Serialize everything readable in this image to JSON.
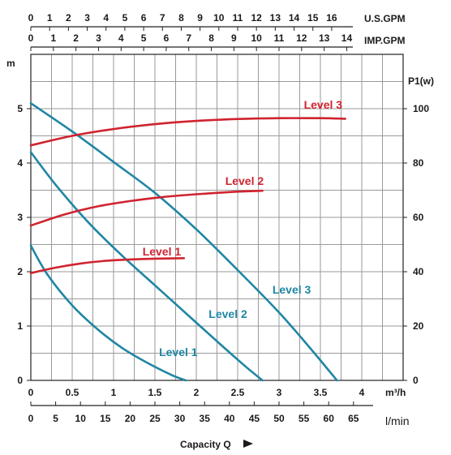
{
  "chart_data": {
    "type": "line",
    "title": "",
    "xlabel": "Capacity Q",
    "x_units": "m³/h",
    "xlim": [
      0,
      4.5
    ],
    "x_ticks": [
      0,
      0.5,
      1,
      1.5,
      2,
      2.5,
      3,
      3.5,
      4
    ],
    "y_left_label": "m",
    "y_left_lim": [
      0,
      6
    ],
    "y_left_ticks": [
      0,
      1,
      2,
      3,
      4,
      5
    ],
    "y_right_label": "P1(w)",
    "y_right_lim": [
      0,
      120
    ],
    "y_right_ticks": [
      0,
      20,
      40,
      60,
      80,
      100
    ],
    "grid": true,
    "top_axes": [
      {
        "label": "U.S.GPM",
        "range": [
          0,
          19.8
        ],
        "ticks": [
          0,
          1,
          2,
          3,
          4,
          5,
          6,
          7,
          8,
          9,
          10,
          11,
          12,
          13,
          14,
          15,
          16
        ]
      },
      {
        "label": "IMP.GPM",
        "range": [
          0,
          16.5
        ],
        "ticks": [
          0,
          1,
          2,
          3,
          4,
          5,
          6,
          7,
          8,
          9,
          10,
          11,
          12,
          13,
          14
        ]
      }
    ],
    "bottom_axis_2": {
      "label": "l/min",
      "range": [
        0,
        75
      ],
      "ticks": [
        0,
        5,
        10,
        15,
        20,
        25,
        30,
        35,
        40,
        45,
        50,
        55,
        60,
        65
      ]
    },
    "series": [
      {
        "name": "Level 1",
        "axis": "left",
        "color": "#1f86a3",
        "x": [
          0,
          0.2,
          0.5,
          0.8,
          1.1,
          1.4,
          1.7,
          1.87
        ],
        "y": [
          2.48,
          1.95,
          1.38,
          0.95,
          0.6,
          0.33,
          0.1,
          0
        ]
      },
      {
        "name": "Level 2",
        "axis": "left",
        "color": "#1f86a3",
        "x": [
          0,
          0.3,
          0.7,
          1.1,
          1.5,
          1.9,
          2.3,
          2.6,
          2.8
        ],
        "y": [
          4.2,
          3.6,
          2.9,
          2.3,
          1.75,
          1.2,
          0.65,
          0.25,
          0
        ]
      },
      {
        "name": "Level 3",
        "axis": "left",
        "color": "#1f86a3",
        "x": [
          0,
          0.5,
          1.0,
          1.5,
          2.0,
          2.5,
          3.0,
          3.4,
          3.7
        ],
        "y": [
          5.1,
          4.58,
          4.02,
          3.45,
          2.78,
          2.03,
          1.25,
          0.55,
          0
        ]
      },
      {
        "name": "Level 1",
        "axis": "right",
        "color": "#d0232f",
        "x": [
          0,
          0.3,
          0.6,
          0.9,
          1.2,
          1.5,
          1.85
        ],
        "y": [
          39.5,
          41.5,
          43,
          44,
          44.5,
          44.8,
          45
        ]
      },
      {
        "name": "Level 2",
        "axis": "right",
        "color": "#d0232f",
        "x": [
          0,
          0.4,
          0.8,
          1.2,
          1.6,
          2.0,
          2.4,
          2.8
        ],
        "y": [
          57,
          61,
          64,
          66,
          67.5,
          68.5,
          69.3,
          69.8
        ]
      },
      {
        "name": "Level 3",
        "axis": "right",
        "color": "#d0232f",
        "x": [
          0,
          0.5,
          1.0,
          1.5,
          2.0,
          2.5,
          3.0,
          3.5,
          3.8
        ],
        "y": [
          86.5,
          90,
          92.5,
          94.3,
          95.5,
          96.2,
          96.5,
          96.5,
          96.3
        ]
      }
    ],
    "annotations": [
      {
        "text": "Level 1",
        "x": 1.55,
        "y": 0.45,
        "color": "#1f86a3"
      },
      {
        "text": "Level 2",
        "x": 2.15,
        "y": 1.15,
        "color": "#1f86a3"
      },
      {
        "text": "Level 3",
        "x": 2.92,
        "y": 1.6,
        "color": "#1f86a3"
      },
      {
        "text": "Level 1",
        "x": 1.35,
        "y": 2.3,
        "color": "#d0232f"
      },
      {
        "text": "Level 2",
        "x": 2.35,
        "y": 3.6,
        "color": "#d0232f"
      },
      {
        "text": "Level 3",
        "x": 3.3,
        "y": 5.0,
        "color": "#d0232f"
      }
    ]
  }
}
